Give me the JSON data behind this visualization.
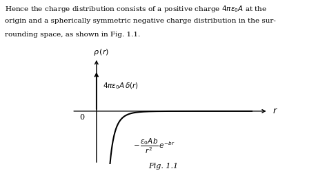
{
  "background_color": "#ffffff",
  "fig_width": 4.74,
  "fig_height": 2.49,
  "dpi": 100,
  "text_color": "#000000",
  "curve_color": "#000000",
  "arrow_color": "#000000",
  "header_lines": [
    "Hence the charge distribution consists of a positive charge $4\\pi\\varepsilon_0 A$ at the",
    "origin and a spherically symmetric negative charge distribution in the sur-",
    "rounding space, as shown in Fig. 1.1."
  ],
  "ylabel": "$\\rho\\,(r)$",
  "xlabel": "$r$",
  "origin_label": "0",
  "delta_label": "$4\\pi\\varepsilon_0 A\\,\\delta(r)$",
  "neg_label": "$-\\,\\dfrac{\\varepsilon_0 Ab}{r^2}\\,e^{-br}$",
  "caption": "Fig. 1.1",
  "b": 2.5,
  "scale": 0.55,
  "r_start": 0.18,
  "r_end": 3.8,
  "xlim": [
    -0.6,
    4.2
  ],
  "ylim": [
    -2.2,
    2.2
  ]
}
